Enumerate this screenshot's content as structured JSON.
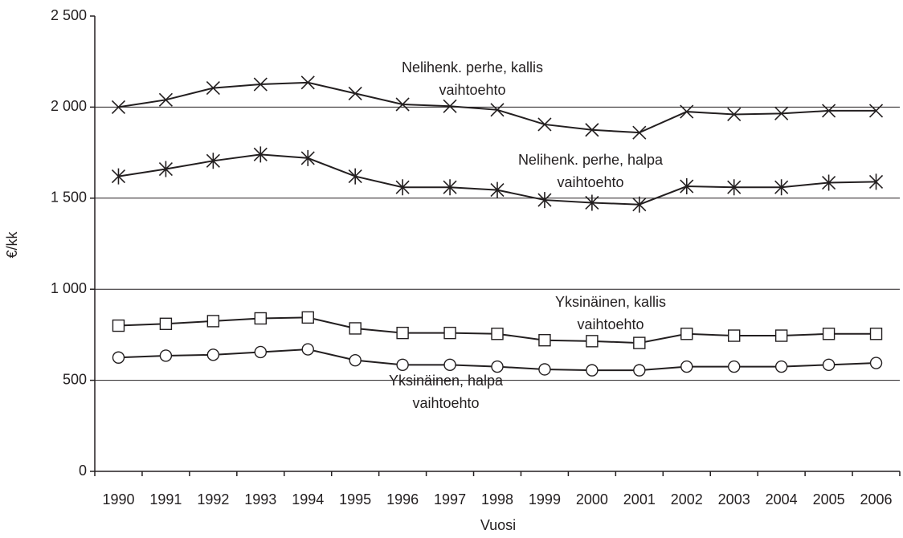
{
  "chart_data": {
    "type": "line",
    "x_label": "Vuosi",
    "y_label": "€/kk",
    "categories": [
      "1990",
      "1991",
      "1992",
      "1993",
      "1994",
      "1995",
      "1996",
      "1997",
      "1998",
      "1999",
      "2000",
      "2001",
      "2002",
      "2003",
      "2004",
      "2005",
      "2006"
    ],
    "series": [
      {
        "label": [
          "Nelihenk. perhe, kallis",
          "vaihtoehto"
        ],
        "marker": "x",
        "color": "#231f20",
        "values": [
          2000,
          2040,
          2105,
          2125,
          2135,
          2075,
          2015,
          2005,
          1985,
          1905,
          1875,
          1860,
          1975,
          1960,
          1965,
          1980,
          1980
        ]
      },
      {
        "label": [
          "Nelihenk. perhe, halpa",
          "vaihtoehto"
        ],
        "marker": "asterisk",
        "color": "#231f20",
        "values": [
          1620,
          1660,
          1705,
          1740,
          1720,
          1620,
          1560,
          1560,
          1545,
          1490,
          1475,
          1465,
          1565,
          1560,
          1560,
          1585,
          1590
        ]
      },
      {
        "label": [
          "Yksinäinen, kallis",
          "vaihtoehto"
        ],
        "marker": "square",
        "color": "#231f20",
        "values": [
          800,
          810,
          825,
          840,
          845,
          785,
          760,
          760,
          755,
          720,
          715,
          705,
          755,
          745,
          745,
          755,
          755
        ]
      },
      {
        "label": [
          "Yksinäinen, halpa",
          "vaihtoehto"
        ],
        "marker": "circle",
        "color": "#231f20",
        "values": [
          625,
          635,
          640,
          655,
          670,
          610,
          585,
          585,
          575,
          560,
          555,
          555,
          575,
          575,
          575,
          585,
          595
        ]
      }
    ],
    "ylim": [
      0,
      2500
    ],
    "yticks": [
      0,
      500,
      {
        "value": 1000,
        "label": "1 000"
      },
      {
        "value": 1500,
        "label": "1 500"
      },
      {
        "value": 2000,
        "label": "2 000"
      },
      {
        "value": 2500,
        "label": "2 500"
      }
    ],
    "grid": true
  }
}
